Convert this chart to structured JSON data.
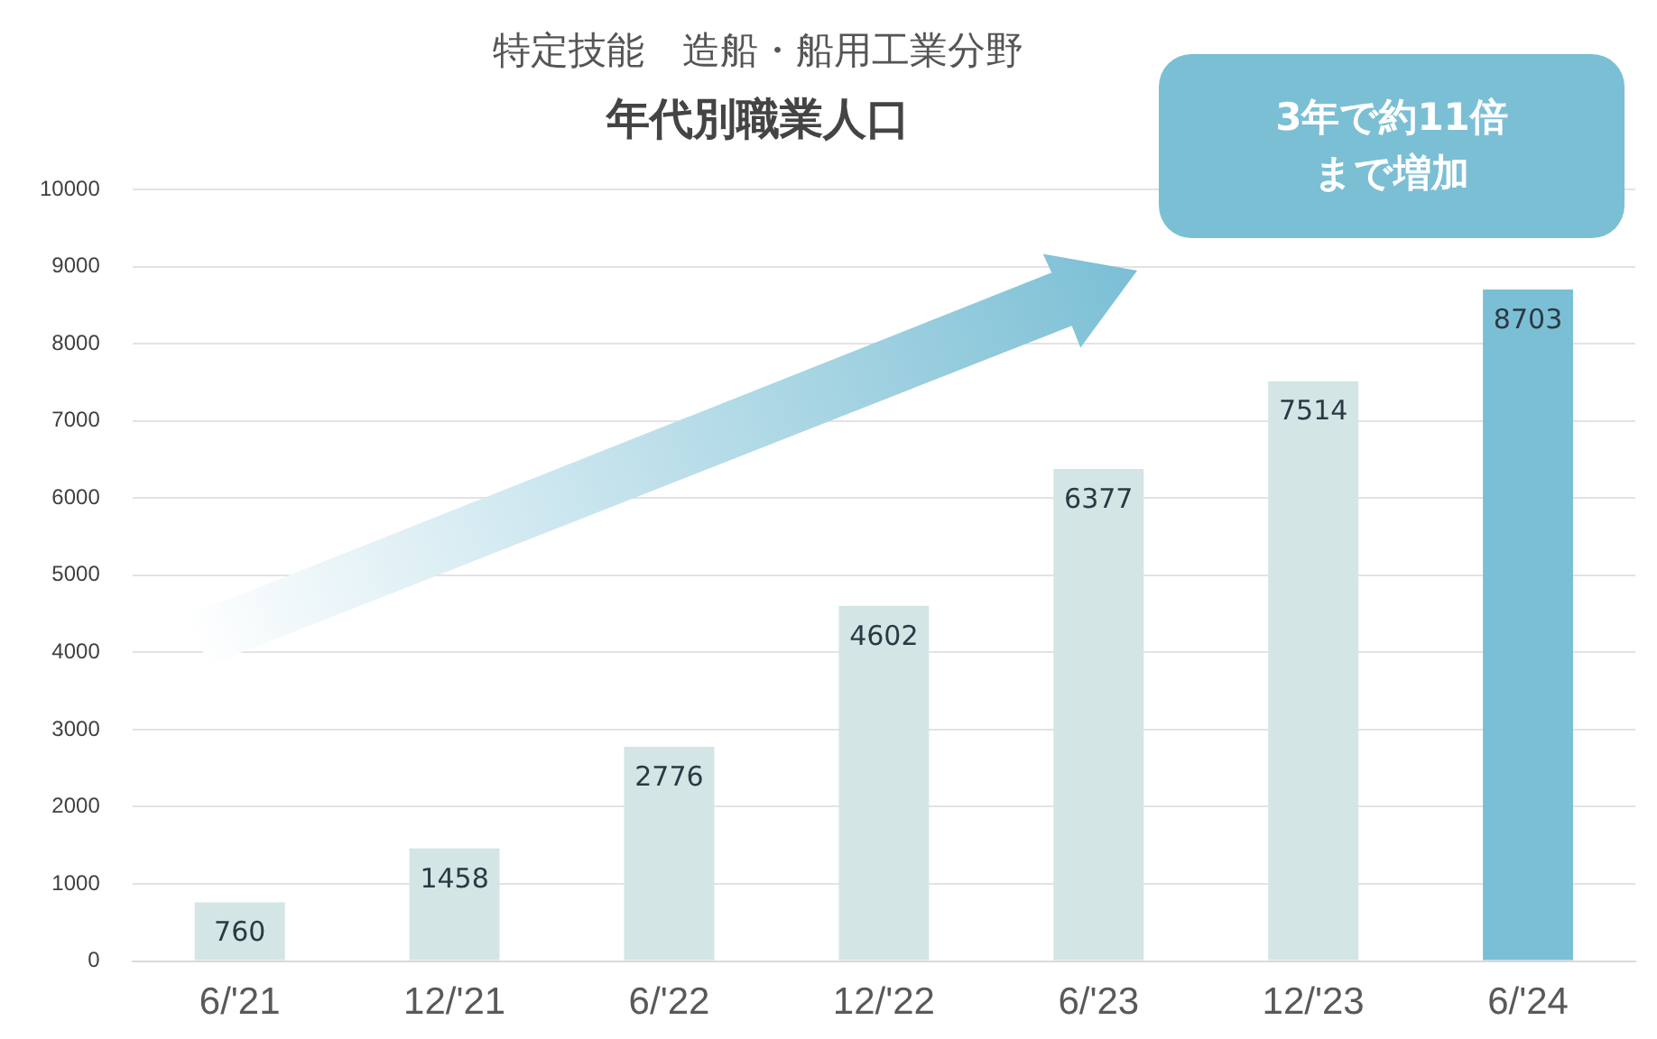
{
  "chart_data": {
    "type": "bar",
    "title": "特定技能　造船・船用工業分野",
    "subtitle": "年代別職業人口",
    "categories": [
      "6/'21",
      "12/'21",
      "6/'22",
      "12/'22",
      "6/'23",
      "12/'23",
      "6/'24"
    ],
    "values": [
      760,
      1458,
      2776,
      4602,
      6377,
      7514,
      8703
    ],
    "colors": [
      "#d3e5e5",
      "#d3e5e5",
      "#d3e5e5",
      "#d3e5e5",
      "#d3e5e5",
      "#d3e5e5",
      "#7bbfd5"
    ],
    "ylim": [
      0,
      10000
    ],
    "yticks": [
      0,
      1000,
      2000,
      3000,
      4000,
      5000,
      6000,
      7000,
      8000,
      9000,
      10000
    ],
    "grid": "y",
    "data_labels": true,
    "annotations": [
      "3年で約11倍まで増加"
    ]
  }
}
